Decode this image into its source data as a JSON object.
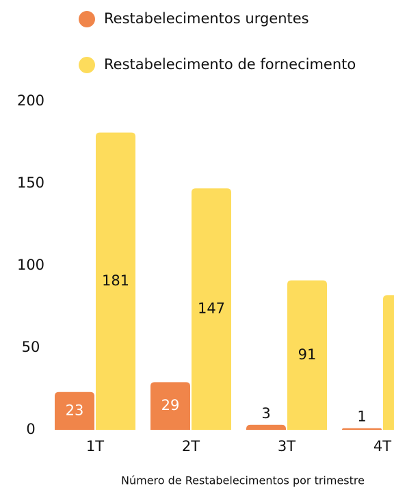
{
  "chart_data": {
    "type": "bar",
    "xlabel": "Número de Restabelecimentos por trimestre",
    "categories": [
      "1T",
      "2T",
      "3T",
      "4T"
    ],
    "series": [
      {
        "name": "Restabelecimentos urgentes",
        "color": "#f0854a",
        "values": [
          23,
          29,
          3,
          1
        ]
      },
      {
        "name": "Restabelecimento de fornecimento",
        "color": "#fddc5c",
        "values": [
          181,
          147,
          91,
          82
        ]
      }
    ],
    "ylim": [
      0,
      200
    ],
    "yticks": [
      0,
      50,
      100,
      150,
      200
    ]
  }
}
